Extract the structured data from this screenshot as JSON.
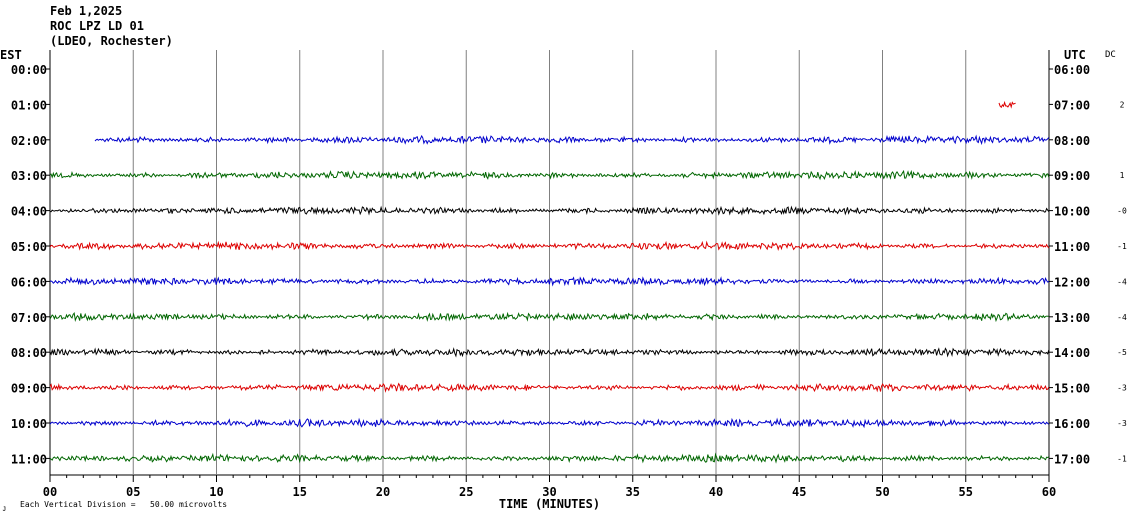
{
  "header": {
    "date": "Feb 1,2025",
    "station": "ROC LPZ LD 01",
    "network": "(LDEO, Rochester)"
  },
  "left_axis_label": "EST",
  "right_axis_label": "UTC",
  "dc_label": "DC",
  "footer": {
    "scale_note": "Each Vertical Division =   50.00 microvolts"
  },
  "colors": {
    "grid": "#808080",
    "blue": "#0000cc",
    "green": "#006600",
    "black": "#000000",
    "red": "#dd0000"
  },
  "chart_data": {
    "type": "line",
    "title": "",
    "xlabel": "TIME (MINUTES)",
    "ylabel": "",
    "xlim": [
      0,
      60
    ],
    "x_ticks": [
      "00",
      "05",
      "10",
      "15",
      "20",
      "25",
      "30",
      "35",
      "40",
      "45",
      "50",
      "55",
      "60"
    ],
    "series": [
      {
        "est": "00:00",
        "utc": "06:00",
        "dc": "",
        "color": "red",
        "start_min": null,
        "end_min": null
      },
      {
        "est": "01:00",
        "utc": "07:00",
        "dc": "2",
        "color": "red",
        "start_min": 57.0,
        "end_min": 58.0
      },
      {
        "est": "02:00",
        "utc": "08:00",
        "dc": "",
        "color": "blue",
        "start_min": 2.7,
        "end_min": 60
      },
      {
        "est": "03:00",
        "utc": "09:00",
        "dc": "1",
        "color": "green",
        "start_min": 0,
        "end_min": 60
      },
      {
        "est": "04:00",
        "utc": "10:00",
        "dc": "-0",
        "color": "black",
        "start_min": 0,
        "end_min": 60
      },
      {
        "est": "05:00",
        "utc": "11:00",
        "dc": "-1",
        "color": "red",
        "start_min": 0,
        "end_min": 60
      },
      {
        "est": "06:00",
        "utc": "12:00",
        "dc": "-4",
        "color": "blue",
        "start_min": 0,
        "end_min": 60
      },
      {
        "est": "07:00",
        "utc": "13:00",
        "dc": "-4",
        "color": "green",
        "start_min": 0,
        "end_min": 60
      },
      {
        "est": "08:00",
        "utc": "14:00",
        "dc": "-5",
        "color": "black",
        "start_min": 0,
        "end_min": 60
      },
      {
        "est": "09:00",
        "utc": "15:00",
        "dc": "-3",
        "color": "red",
        "start_min": 0,
        "end_min": 60
      },
      {
        "est": "10:00",
        "utc": "16:00",
        "dc": "-3",
        "color": "blue",
        "start_min": 0,
        "end_min": 60
      },
      {
        "est": "11:00",
        "utc": "17:00",
        "dc": "-1",
        "color": "green",
        "start_min": 0,
        "end_min": 60
      }
    ]
  }
}
